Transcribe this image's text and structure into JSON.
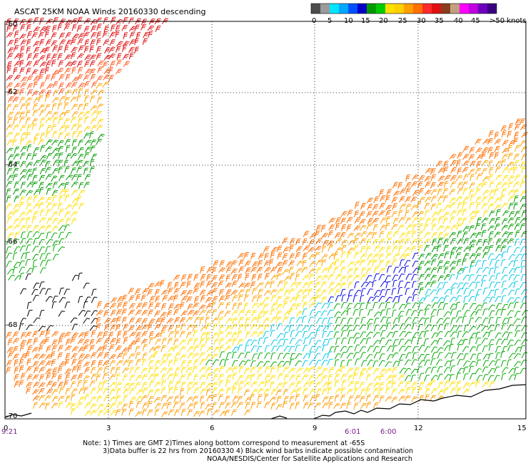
{
  "title": "ASCAT 25KM NOAA Winds 20160330 descending",
  "legend": {
    "labels": [
      "0",
      "5",
      "10",
      "15",
      "20",
      "25",
      "30",
      "35",
      "40",
      "45",
      ">50 knots"
    ],
    "colors": [
      "#4d4d4d",
      "#9b9b9b",
      "#00e6ff",
      "#00a8ff",
      "#0050ff",
      "#0000c8",
      "#009a00",
      "#00cc00",
      "#ffdf00",
      "#ffd000",
      "#ffa000",
      "#ff7000",
      "#ff2a2a",
      "#e01010",
      "#8b3c1e",
      "#c0a080",
      "#ff00ff",
      "#c000e0",
      "#7000c0",
      "#3b0080"
    ]
  },
  "latitude_labels": [
    "-60",
    "-62",
    "-64",
    "-66",
    "-68",
    "-70"
  ],
  "longitude_labels": [
    "0",
    "3",
    "6",
    "9",
    "12",
    "15"
  ],
  "time_labels": [
    "9:21",
    "6:01",
    "6:00"
  ],
  "notes": {
    "line1": "Note: 1) Times are GMT 2)Times along bottom correspond to measurement at -65S",
    "line2": "3)Data buffer is 22 hrs from 20160330 4) Black wind barbs indicate possible contamination",
    "line3": "NOAA/NESDIS/Center for Satellite Applications and Research"
  }
}
